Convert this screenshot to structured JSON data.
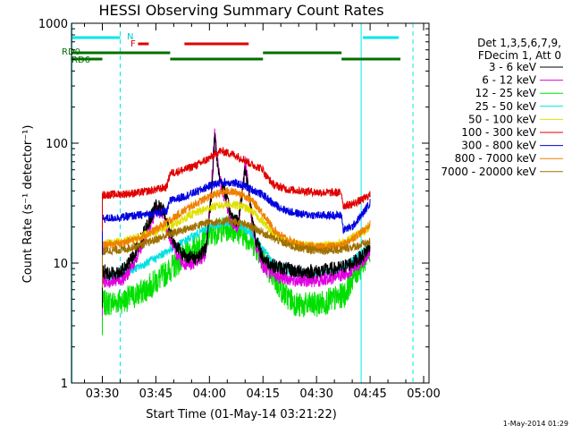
{
  "chart_data": {
    "type": "line",
    "title": "HESSI Observing Summary Count Rates",
    "xlabel": "Start Time (01-May-14 03:21:22)",
    "ylabel": "Count Rate (s⁻¹ detector⁻¹)",
    "yscale": "log",
    "ylim": [
      1,
      1000
    ],
    "xlim": [
      "03:21:22",
      "05:01:30"
    ],
    "x_ticks": [
      "03:30",
      "03:45",
      "04:00",
      "04:15",
      "04:30",
      "04:45",
      "05:00"
    ],
    "y_ticks": [
      "1",
      "10",
      "100",
      "1000"
    ],
    "legend_header": [
      "Det 1,3,5,6,7,9,",
      "FDecim 1, Att 0"
    ],
    "legend_position": "right",
    "timestamp": "1-May-2014 01:29",
    "series": [
      {
        "name": "3 - 6 keV",
        "color": "#000000",
        "points": [
          [
            "03:30:00",
            8.5
          ],
          [
            "03:33:00",
            8.2
          ],
          [
            "03:36:00",
            8.8
          ],
          [
            "03:38:00",
            10.5
          ],
          [
            "03:40:00",
            14
          ],
          [
            "03:43:00",
            22
          ],
          [
            "03:45:00",
            30
          ],
          [
            "03:47:00",
            28
          ],
          [
            "03:48:00",
            22
          ],
          [
            "03:50:00",
            15
          ],
          [
            "03:53:00",
            11.5
          ],
          [
            "03:56:00",
            11
          ],
          [
            "03:59:00",
            13
          ],
          [
            "04:00:30",
            35
          ],
          [
            "04:01:30",
            118
          ],
          [
            "04:02:00",
            75
          ],
          [
            "04:03:00",
            50
          ],
          [
            "04:04:30",
            38
          ],
          [
            "04:06:00",
            25
          ],
          [
            "04:08:00",
            22
          ],
          [
            "04:09:00",
            35
          ],
          [
            "04:10:00",
            62
          ],
          [
            "04:11:00",
            40
          ],
          [
            "04:12:00",
            24
          ],
          [
            "04:13:00",
            16
          ],
          [
            "04:15:00",
            11
          ],
          [
            "04:18:00",
            9.5
          ],
          [
            "04:21:00",
            9
          ],
          [
            "04:25:00",
            8.5
          ],
          [
            "04:30:00",
            8.5
          ],
          [
            "04:33:00",
            8.8
          ],
          [
            "04:36:00",
            9
          ],
          [
            "04:40:00",
            10
          ],
          [
            "04:43:00",
            11.5
          ],
          [
            "04:45:00",
            14
          ]
        ]
      },
      {
        "name": "6 - 12 keV",
        "color": "#e000e0",
        "points": [
          [
            "03:30:00",
            7.2
          ],
          [
            "03:33:00",
            7.0
          ],
          [
            "03:36:00",
            7.5
          ],
          [
            "03:38:00",
            9
          ],
          [
            "03:40:00",
            12
          ],
          [
            "03:43:00",
            19
          ],
          [
            "03:45:00",
            28
          ],
          [
            "03:47:00",
            26
          ],
          [
            "03:48:00",
            20
          ],
          [
            "03:50:00",
            13
          ],
          [
            "03:53:00",
            10
          ],
          [
            "03:56:00",
            10
          ],
          [
            "03:59:00",
            12
          ],
          [
            "04:00:30",
            40
          ],
          [
            "04:01:30",
            128
          ],
          [
            "04:02:00",
            80
          ],
          [
            "04:03:00",
            48
          ],
          [
            "04:04:30",
            34
          ],
          [
            "04:06:00",
            22
          ],
          [
            "04:08:00",
            20
          ],
          [
            "04:09:00",
            35
          ],
          [
            "04:10:00",
            72
          ],
          [
            "04:11:00",
            40
          ],
          [
            "04:12:00",
            22
          ],
          [
            "04:13:00",
            14
          ],
          [
            "04:15:00",
            9.5
          ],
          [
            "04:18:00",
            8
          ],
          [
            "04:21:00",
            7.5
          ],
          [
            "04:25:00",
            7.2
          ],
          [
            "04:30:00",
            7.2
          ],
          [
            "04:33:00",
            7.5
          ],
          [
            "04:36:00",
            7.8
          ],
          [
            "04:40:00",
            8.8
          ],
          [
            "04:43:00",
            10.5
          ],
          [
            "04:45:00",
            12.5
          ]
        ]
      },
      {
        "name": "12 - 25 keV",
        "color": "#00e000",
        "points": [
          [
            "03:30:00",
            4.6
          ],
          [
            "03:33:00",
            4.7
          ],
          [
            "03:36:00",
            4.9
          ],
          [
            "03:39:00",
            5.3
          ],
          [
            "03:42:00",
            6
          ],
          [
            "03:45:00",
            7
          ],
          [
            "03:48:00",
            8.3
          ],
          [
            "03:51:00",
            10
          ],
          [
            "03:54:00",
            12
          ],
          [
            "03:57:00",
            14.5
          ],
          [
            "04:00:00",
            17
          ],
          [
            "04:03:00",
            19
          ],
          [
            "04:06:00",
            19.5
          ],
          [
            "04:09:00",
            18
          ],
          [
            "04:12:00",
            15
          ],
          [
            "04:15:00",
            11
          ],
          [
            "04:18:00",
            7.5
          ],
          [
            "04:21:00",
            5.5
          ],
          [
            "04:25:00",
            4.4
          ],
          [
            "04:30:00",
            4.5
          ],
          [
            "04:35:00",
            5
          ],
          [
            "04:38:00",
            5.5
          ],
          [
            "04:40:00",
            7.5
          ],
          [
            "04:43:00",
            10
          ],
          [
            "04:45:00",
            13
          ]
        ]
      },
      {
        "name": "25 - 50 keV",
        "color": "#00e0e0",
        "points": [
          [
            "03:30:00",
            7.5
          ],
          [
            "03:35:00",
            8
          ],
          [
            "03:40:00",
            9.2
          ],
          [
            "03:45:00",
            11
          ],
          [
            "03:50:00",
            13.5
          ],
          [
            "03:55:00",
            16.5
          ],
          [
            "04:00:00",
            20
          ],
          [
            "04:03:00",
            21.5
          ],
          [
            "04:06:00",
            21.5
          ],
          [
            "04:09:00",
            20
          ],
          [
            "04:12:00",
            17.5
          ],
          [
            "04:15:00",
            13
          ],
          [
            "04:18:00",
            10
          ],
          [
            "04:22:00",
            8.6
          ],
          [
            "04:26:00",
            8.2
          ],
          [
            "04:30:00",
            8.2
          ],
          [
            "04:35:00",
            8.6
          ],
          [
            "04:38:00",
            9.5
          ],
          [
            "04:41:00",
            11
          ],
          [
            "04:44:00",
            13
          ],
          [
            "04:45:00",
            14
          ]
        ]
      },
      {
        "name": "50 - 100 keV",
        "color": "#e0e000",
        "points": [
          [
            "03:30:00",
            14.5
          ],
          [
            "03:35:00",
            15
          ],
          [
            "03:40:00",
            16.5
          ],
          [
            "03:45:00",
            18.5
          ],
          [
            "03:50:00",
            21
          ],
          [
            "03:55:00",
            25.5
          ],
          [
            "04:00:00",
            29
          ],
          [
            "04:05:00",
            31
          ],
          [
            "04:09:00",
            30
          ],
          [
            "04:12:00",
            27
          ],
          [
            "04:15:00",
            22
          ],
          [
            "04:18:00",
            17.5
          ],
          [
            "04:22:00",
            15
          ],
          [
            "04:26:00",
            14.2
          ],
          [
            "04:30:00",
            14
          ],
          [
            "04:35:00",
            14.2
          ],
          [
            "04:38:00",
            15
          ],
          [
            "04:41:00",
            17
          ],
          [
            "04:44:00",
            19
          ],
          [
            "04:45:00",
            20
          ]
        ]
      },
      {
        "name": "100 - 300 keV",
        "color": "#e00000",
        "points": [
          [
            "03:30:00",
            37
          ],
          [
            "03:35:00",
            37.5
          ],
          [
            "03:40:00",
            38.5
          ],
          [
            "03:45:00",
            41
          ],
          [
            "03:48:00",
            43
          ],
          [
            "03:49:00",
            56
          ],
          [
            "03:53:00",
            60
          ],
          [
            "03:57:00",
            67
          ],
          [
            "04:00:00",
            75
          ],
          [
            "04:03:00",
            86
          ],
          [
            "04:06:00",
            82
          ],
          [
            "04:09:00",
            75
          ],
          [
            "04:12:00",
            66
          ],
          [
            "04:15:00",
            61
          ],
          [
            "04:15:30",
            55
          ],
          [
            "04:18:00",
            45
          ],
          [
            "04:22:00",
            41
          ],
          [
            "04:26:00",
            40
          ],
          [
            "04:30:00",
            39
          ],
          [
            "04:37:00",
            38.5
          ],
          [
            "04:37:30",
            30
          ],
          [
            "04:40:00",
            31
          ],
          [
            "04:43:00",
            34
          ],
          [
            "04:45:00",
            37
          ]
        ]
      },
      {
        "name": "300 - 800 keV",
        "color": "#0000e0",
        "points": [
          [
            "03:30:00",
            23.5
          ],
          [
            "03:35:00",
            24
          ],
          [
            "03:40:00",
            25
          ],
          [
            "03:45:00",
            26
          ],
          [
            "03:48:00",
            27
          ],
          [
            "03:49:00",
            33
          ],
          [
            "03:53:00",
            36
          ],
          [
            "03:57:00",
            40
          ],
          [
            "04:00:00",
            44
          ],
          [
            "04:03:00",
            47
          ],
          [
            "04:06:00",
            47
          ],
          [
            "04:09:00",
            45
          ],
          [
            "04:12:00",
            41
          ],
          [
            "04:15:00",
            37
          ],
          [
            "04:18:00",
            31
          ],
          [
            "04:22:00",
            27
          ],
          [
            "04:26:00",
            25.5
          ],
          [
            "04:30:00",
            25
          ],
          [
            "04:37:00",
            25
          ],
          [
            "04:37:30",
            19
          ],
          [
            "04:40:00",
            20
          ],
          [
            "04:43:00",
            26
          ],
          [
            "04:45:00",
            32
          ]
        ]
      },
      {
        "name": "800 - 7000 keV",
        "color": "#f08000",
        "points": [
          [
            "03:30:00",
            14
          ],
          [
            "03:35:00",
            14.5
          ],
          [
            "03:40:00",
            16
          ],
          [
            "03:45:00",
            19
          ],
          [
            "03:50:00",
            24
          ],
          [
            "03:55:00",
            30
          ],
          [
            "04:00:00",
            36
          ],
          [
            "04:05:00",
            40
          ],
          [
            "04:09:00",
            38
          ],
          [
            "04:12:00",
            33
          ],
          [
            "04:15:00",
            26
          ],
          [
            "04:18:00",
            19
          ],
          [
            "04:22:00",
            15.5
          ],
          [
            "04:26:00",
            14
          ],
          [
            "04:30:00",
            13.5
          ],
          [
            "04:37:00",
            14
          ],
          [
            "04:40:00",
            16
          ],
          [
            "04:43:00",
            18.5
          ],
          [
            "04:45:00",
            21
          ]
        ]
      },
      {
        "name": "7000 - 20000 keV",
        "color": "#a07000",
        "points": [
          [
            "03:30:00",
            12.5
          ],
          [
            "03:36:00",
            13
          ],
          [
            "03:42:00",
            14.5
          ],
          [
            "03:48:00",
            17
          ],
          [
            "03:54:00",
            19.5
          ],
          [
            "04:00:00",
            22
          ],
          [
            "04:06:00",
            22.5
          ],
          [
            "04:12:00",
            20
          ],
          [
            "04:18:00",
            16
          ],
          [
            "04:24:00",
            13.5
          ],
          [
            "04:30:00",
            12.8
          ],
          [
            "04:36:00",
            12.8
          ],
          [
            "04:42:00",
            14
          ],
          [
            "04:45:00",
            15
          ]
        ]
      }
    ],
    "flag_bars": [
      {
        "label": "N",
        "color": "#00e8e8",
        "row": "N",
        "segments": [
          [
            "03:21:22",
            "03:35:00"
          ],
          [
            "04:43:00",
            "04:53:00"
          ]
        ]
      },
      {
        "label": "F",
        "color": "#e00000",
        "row": "F",
        "segments": [
          [
            "03:40:00",
            "03:43:00"
          ],
          [
            "03:53:00",
            "04:11:00"
          ]
        ]
      },
      {
        "label": "RD0",
        "color": "#007000",
        "row": "RD0",
        "segments": [
          [
            "03:21:22",
            "03:49:00"
          ],
          [
            "04:15:00",
            "04:37:00"
          ]
        ]
      },
      {
        "label": "RD6",
        "color": "#007000",
        "row": "RD6",
        "segments": [
          [
            "03:21:22",
            "03:30:00"
          ],
          [
            "03:49:00",
            "04:15:00"
          ],
          [
            "04:37:00",
            "04:53:30"
          ]
        ]
      }
    ],
    "vertical_markers": [
      {
        "time": "03:21:30",
        "color": "#00e8e8",
        "style": "solid"
      },
      {
        "time": "03:35:00",
        "color": "#00e8e8",
        "style": "dashed"
      },
      {
        "time": "04:42:30",
        "color": "#00e8e8",
        "style": "solid"
      },
      {
        "time": "04:57:00",
        "color": "#00e8e8",
        "style": "dashed"
      }
    ]
  }
}
